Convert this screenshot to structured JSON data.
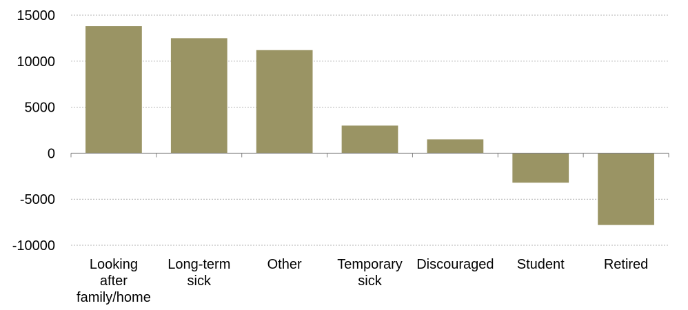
{
  "chart_data": {
    "type": "bar",
    "title": "",
    "xlabel": "",
    "ylabel": "",
    "categories": [
      "Looking after family/home",
      "Long-term sick",
      "Other",
      "Temporary sick",
      "Discouraged",
      "Student",
      "Retired"
    ],
    "category_lines": [
      [
        "Looking",
        "after",
        "family/home"
      ],
      [
        "Long-term",
        "sick"
      ],
      [
        "Other"
      ],
      [
        "Temporary",
        "sick"
      ],
      [
        "Discouraged"
      ],
      [
        "Student"
      ],
      [
        "Retired"
      ]
    ],
    "values": [
      13800,
      12500,
      11200,
      3000,
      1500,
      -3200,
      -7800
    ],
    "ylim": [
      -10000,
      15000
    ],
    "yticks": [
      15000,
      10000,
      5000,
      0,
      -5000,
      -10000
    ],
    "ytick_labels": [
      "15000",
      "10000",
      "5000",
      "0",
      "-5000",
      "-10000"
    ],
    "grid": true,
    "legend": "none",
    "bar_color": "#9a9464"
  }
}
